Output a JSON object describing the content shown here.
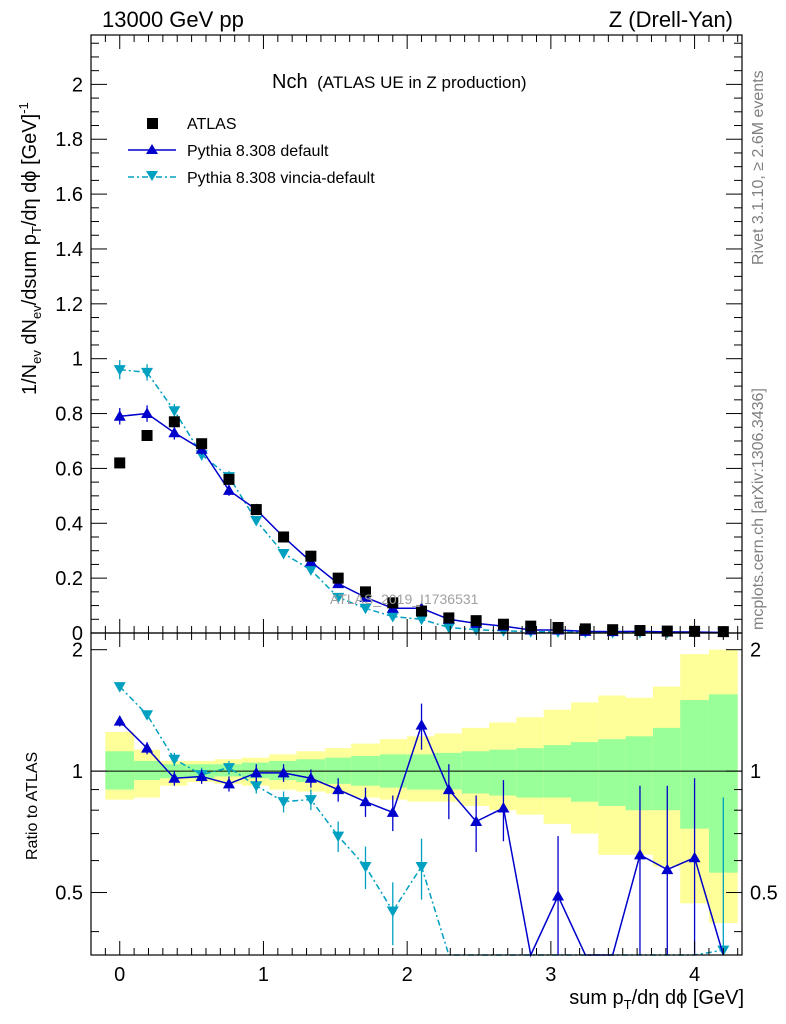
{
  "header": {
    "left": "13000 GeV pp",
    "right": "Z (Drell-Yan)"
  },
  "title": {
    "main": "Nch",
    "sub": "(ATLAS UE in Z production)"
  },
  "side_labels": {
    "rivet": "Rivet 3.1.10, ≥ 2.6M events",
    "mcplots": "mcplots.cern.ch [arXiv:1306.3436]"
  },
  "watermark": "ATLAS_2019_I1736531",
  "colors": {
    "data": "#000000",
    "default": "#0000cc",
    "vincia": "#00a0c0",
    "band_outer": "#ffff99",
    "band_inner": "#99ff99"
  },
  "chart_data": [
    {
      "type": "scatter",
      "panel": "main",
      "xlabel": "sum p_T/dη dϕ [GeV]",
      "ylabel": "1/N_ev dN_ev/dsum p_T/dη dϕ [GeV]^-1",
      "xlim": [
        -0.2,
        4.33
      ],
      "ylim": [
        0,
        2.18
      ],
      "x_ticks": [
        "0",
        "1",
        "2",
        "3",
        "4"
      ],
      "y_ticks": [
        "0",
        "0.2",
        "0.4",
        "0.6",
        "0.8",
        "1",
        "1.2",
        "1.4",
        "1.6",
        "1.8",
        "2"
      ],
      "legend_position": "top-left",
      "x": [
        0,
        0.19,
        0.38,
        0.57,
        0.76,
        0.95,
        1.14,
        1.33,
        1.52,
        1.71,
        1.9,
        2.1,
        2.29,
        2.48,
        2.67,
        2.86,
        3.05,
        3.24,
        3.43,
        3.62,
        3.81,
        4.0,
        4.2
      ],
      "series": [
        {
          "name": "ATLAS",
          "marker": "square",
          "values": [
            0.62,
            0.72,
            0.77,
            0.69,
            0.56,
            0.45,
            0.35,
            0.28,
            0.2,
            0.15,
            0.11,
            0.08,
            0.055,
            0.045,
            0.032,
            0.025,
            0.02,
            0.015,
            0.012,
            0.009,
            0.007,
            0.006,
            0.005
          ]
        },
        {
          "name": "Pythia 8.308 default",
          "marker": "triangle-up",
          "values": [
            0.79,
            0.8,
            0.73,
            0.67,
            0.52,
            0.45,
            0.35,
            0.26,
            0.18,
            0.13,
            0.09,
            0.09,
            0.05,
            0.035,
            0.025,
            0.011,
            0.011,
            0.006,
            0.005,
            0.006,
            0.004,
            0.0035,
            0.002
          ],
          "errors": [
            0.03,
            0.03,
            0.025,
            0.02,
            0.02,
            0.015,
            0.01,
            0.01,
            0.01,
            0.008,
            0.006,
            0.006,
            0.005,
            0.004,
            0.003,
            0.002,
            0.002,
            0.002,
            0.002,
            0.002,
            0.002,
            0.002,
            0.002
          ]
        },
        {
          "name": "Pythia 8.308 vincia-default",
          "marker": "triangle-down",
          "values": [
            0.96,
            0.95,
            0.81,
            0.65,
            0.57,
            0.41,
            0.29,
            0.23,
            0.13,
            0.09,
            0.06,
            0.05,
            0.02,
            0.012,
            0.008,
            0.005,
            0.004,
            0.003,
            0.002,
            0.002,
            0.002,
            0.002,
            0.002
          ],
          "errors": [
            0.035,
            0.03,
            0.025,
            0.02,
            0.02,
            0.015,
            0.01,
            0.01,
            0.008,
            0.006,
            0.005,
            0.005,
            0.004,
            0.003,
            0.002,
            0.002,
            0.002,
            0.002,
            0.002,
            0.002,
            0.002,
            0.002,
            0.002
          ]
        }
      ]
    },
    {
      "type": "line",
      "panel": "ratio",
      "ylabel": "Ratio to ATLAS",
      "ylim": [
        0.35,
        2.2
      ],
      "y_ticks": [
        "0.5",
        "1",
        "2"
      ],
      "reference_line": 1,
      "x": [
        0,
        0.19,
        0.38,
        0.57,
        0.76,
        0.95,
        1.14,
        1.33,
        1.52,
        1.71,
        1.9,
        2.1,
        2.29,
        2.48,
        2.67,
        2.86,
        3.05,
        3.24,
        3.43,
        3.62,
        3.81,
        4.0,
        4.2
      ],
      "bands": {
        "bin_edges": [
          -0.1,
          0.1,
          0.28,
          0.47,
          0.66,
          0.85,
          1.04,
          1.23,
          1.43,
          1.61,
          1.81,
          2.0,
          2.19,
          2.38,
          2.57,
          2.76,
          2.95,
          3.14,
          3.33,
          3.52,
          3.71,
          3.9,
          4.1,
          4.3
        ],
        "inner_low": [
          0.9,
          0.95,
          0.96,
          0.96,
          0.97,
          0.96,
          0.95,
          0.94,
          0.93,
          0.92,
          0.91,
          0.9,
          0.9,
          0.88,
          0.87,
          0.86,
          0.86,
          0.84,
          0.82,
          0.8,
          0.8,
          0.72,
          0.56
        ],
        "inner_high": [
          1.12,
          1.06,
          1.04,
          1.04,
          1.04,
          1.05,
          1.06,
          1.07,
          1.08,
          1.09,
          1.1,
          1.1,
          1.11,
          1.12,
          1.13,
          1.14,
          1.16,
          1.18,
          1.2,
          1.22,
          1.28,
          1.5,
          1.55
        ],
        "outer_low": [
          0.85,
          0.86,
          0.92,
          0.94,
          0.93,
          0.92,
          0.9,
          0.89,
          0.88,
          0.86,
          0.85,
          0.84,
          0.84,
          0.82,
          0.8,
          0.78,
          0.74,
          0.7,
          0.62,
          0.62,
          0.58,
          0.47,
          0.42
        ],
        "outer_high": [
          1.25,
          1.13,
          1.06,
          1.06,
          1.07,
          1.08,
          1.1,
          1.12,
          1.14,
          1.17,
          1.2,
          1.22,
          1.24,
          1.28,
          1.32,
          1.36,
          1.42,
          1.48,
          1.54,
          1.52,
          1.62,
          1.95,
          2.0
        ]
      },
      "series": [
        {
          "name": "Pythia 8.308 default",
          "values": [
            1.33,
            1.14,
            0.96,
            0.97,
            0.93,
            0.99,
            0.99,
            0.96,
            0.9,
            0.84,
            0.79,
            1.3,
            0.9,
            0.75,
            0.81,
            0.3,
            0.49,
            0.3,
            0.3,
            0.62,
            0.57,
            0.61,
            0.3
          ],
          "errors": [
            0.04,
            0.04,
            0.04,
            0.04,
            0.04,
            0.05,
            0.05,
            0.05,
            0.06,
            0.07,
            0.08,
            0.17,
            0.14,
            0.12,
            0.14,
            0.1,
            0.2,
            0.1,
            0.1,
            0.3,
            0.35,
            0.35,
            0.1
          ]
        },
        {
          "name": "Pythia 8.308 vincia-default",
          "values": [
            1.62,
            1.38,
            1.07,
            0.98,
            1.02,
            0.92,
            0.84,
            0.85,
            0.69,
            0.58,
            0.45,
            0.58,
            0.3,
            0.3,
            0.3,
            0.3,
            0.3,
            0.3,
            0.3,
            0.3,
            0.3,
            0.3,
            0.36
          ],
          "errors": [
            0.03,
            0.03,
            0.04,
            0.04,
            0.04,
            0.04,
            0.05,
            0.05,
            0.06,
            0.07,
            0.08,
            0.1,
            0.1,
            0.1,
            0.1,
            0.1,
            0.1,
            0.1,
            0.1,
            0.1,
            0.1,
            0.1,
            0.5
          ]
        }
      ]
    }
  ]
}
